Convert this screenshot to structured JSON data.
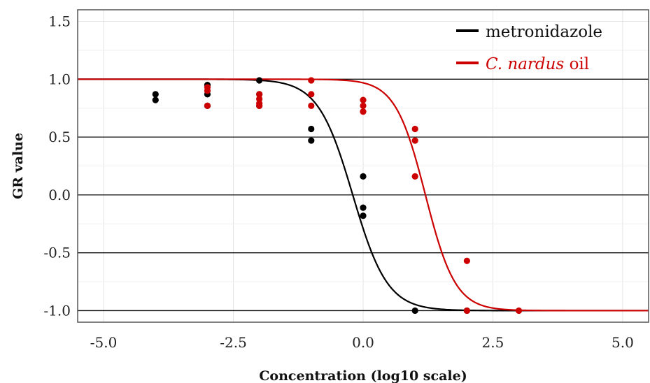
{
  "chart_data": {
    "type": "scatter",
    "title": "",
    "xlabel": "Concentration (log10 scale)",
    "ylabel": "GR value",
    "xlim": [
      -5.5,
      5.5
    ],
    "ylim": [
      -1.1,
      1.6
    ],
    "x_ticks": [
      -5.0,
      -2.5,
      0.0,
      2.5,
      5.0
    ],
    "x_tick_labels": [
      "-5.0",
      "-2.5",
      "0.0",
      "2.5",
      "5.0"
    ],
    "y_ticks": [
      -1.0,
      -0.5,
      0.0,
      0.5,
      1.0,
      1.5
    ],
    "y_tick_labels": [
      "-1.0",
      "-0.5",
      "0.0",
      "0.5",
      "1.0",
      "1.5"
    ],
    "grid": true,
    "legend_position": "top-right",
    "series": [
      {
        "name": "metronidazole",
        "color": "#000000",
        "curve": {
          "model": "sigmoid",
          "top": 1.0,
          "bottom": -1.0,
          "ec50_log10": -0.2,
          "hill": 1.3
        },
        "points": [
          {
            "x": -4.0,
            "y": 0.87
          },
          {
            "x": -4.0,
            "y": 0.82
          },
          {
            "x": -3.0,
            "y": 0.95
          },
          {
            "x": -3.0,
            "y": 0.87
          },
          {
            "x": -3.0,
            "y": 0.77
          },
          {
            "x": -2.0,
            "y": 0.99
          },
          {
            "x": -2.0,
            "y": 0.87
          },
          {
            "x": -2.0,
            "y": 0.77
          },
          {
            "x": -1.0,
            "y": 0.57
          },
          {
            "x": -1.0,
            "y": 0.47
          },
          {
            "x": 0.0,
            "y": 0.16
          },
          {
            "x": 0.0,
            "y": -0.11
          },
          {
            "x": 0.0,
            "y": -0.18
          },
          {
            "x": 1.0,
            "y": -1.0
          },
          {
            "x": 2.0,
            "y": -1.0
          }
        ]
      },
      {
        "name": "C. nardus oil",
        "name_italic": "C. nardus",
        "name_rest": " oil",
        "color": "#cc0000",
        "curve": {
          "model": "sigmoid",
          "top": 1.0,
          "bottom": -1.0,
          "ec50_log10": 1.2,
          "hill": 1.5
        },
        "points": [
          {
            "x": -3.0,
            "y": 0.93
          },
          {
            "x": -3.0,
            "y": 0.9
          },
          {
            "x": -3.0,
            "y": 0.77
          },
          {
            "x": -2.0,
            "y": 0.87
          },
          {
            "x": -2.0,
            "y": 0.83
          },
          {
            "x": -2.0,
            "y": 0.79
          },
          {
            "x": -2.0,
            "y": 0.77
          },
          {
            "x": -1.0,
            "y": 0.99
          },
          {
            "x": -1.0,
            "y": 0.87
          },
          {
            "x": -1.0,
            "y": 0.77
          },
          {
            "x": 0.0,
            "y": 0.82
          },
          {
            "x": 0.0,
            "y": 0.77
          },
          {
            "x": 0.0,
            "y": 0.72
          },
          {
            "x": 1.0,
            "y": 0.57
          },
          {
            "x": 1.0,
            "y": 0.47
          },
          {
            "x": 1.0,
            "y": 0.16
          },
          {
            "x": 2.0,
            "y": -0.57
          },
          {
            "x": 2.0,
            "y": -1.0
          },
          {
            "x": 3.0,
            "y": -1.0
          }
        ]
      }
    ]
  }
}
